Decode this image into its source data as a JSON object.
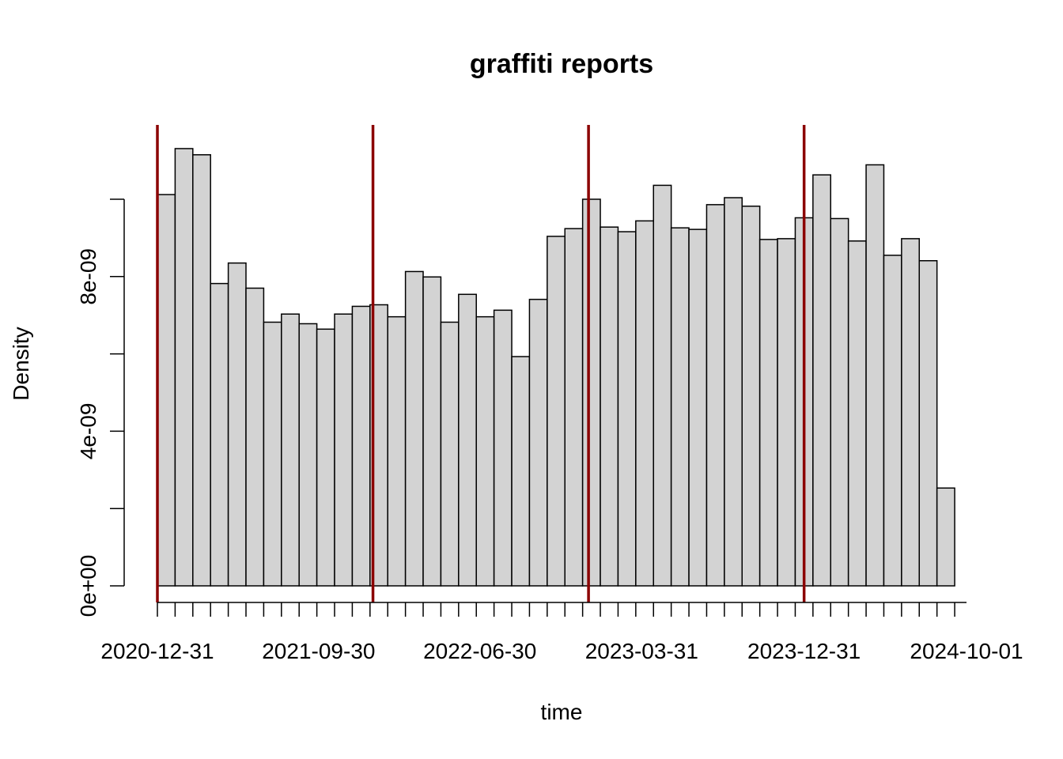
{
  "chart_data": {
    "type": "bar",
    "title": "graffiti reports",
    "xlabel": "time",
    "ylabel": "Density",
    "bin_width_days": 30,
    "x_range": [
      "2020-12-31",
      "2024-10-01"
    ],
    "ylim": [
      0,
      1.2e-08
    ],
    "y_ticks": [
      0,
      2e-09,
      4e-09,
      6e-09,
      8e-09,
      1e-08
    ],
    "y_tick_labels": [
      "0e+00",
      "",
      "4e-09",
      "",
      "8e-09",
      ""
    ],
    "x_tick_labels": [
      "2020-12-31",
      "2021-09-30",
      "2022-06-30",
      "2023-03-31",
      "2023-12-31",
      "2024-10-01"
    ],
    "reference_lines": [
      "2020-12-31",
      "2021-12-31",
      "2022-12-31",
      "2023-12-31"
    ],
    "reference_line_color": "#8b0000",
    "bar_color": "#d3d3d3",
    "values": [
      1.012e-08,
      1.131e-08,
      1.115e-08,
      7.82e-09,
      8.35e-09,
      7.7e-09,
      6.82e-09,
      7.03e-09,
      6.78e-09,
      6.64e-09,
      7.03e-09,
      7.23e-09,
      7.27e-09,
      6.96e-09,
      8.13e-09,
      7.99e-09,
      6.82e-09,
      7.54e-09,
      6.96e-09,
      7.13e-09,
      5.93e-09,
      7.41e-09,
      9.04e-09,
      9.24e-09,
      1e-08,
      9.28e-09,
      9.16e-09,
      9.44e-09,
      1.036e-08,
      9.26e-09,
      9.22e-09,
      9.86e-09,
      1.004e-08,
      9.82e-09,
      8.96e-09,
      8.98e-09,
      9.52e-09,
      1.063e-08,
      9.5e-09,
      8.92e-09,
      1.089e-08,
      8.55e-09,
      8.98e-09,
      8.41e-09,
      2.53e-09
    ]
  }
}
